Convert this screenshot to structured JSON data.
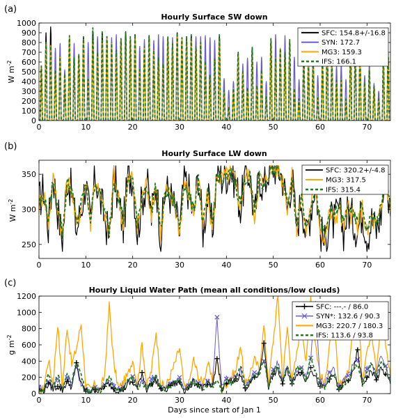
{
  "chart_data": [
    {
      "panel_label": "(a)",
      "type": "line",
      "title": "Hourly Surface SW down",
      "ylabel": "W m",
      "ylabel_sup": "-2",
      "xlabel": "",
      "xlim": [
        0,
        75
      ],
      "ylim": [
        0,
        1000
      ],
      "xticks": [
        0,
        10,
        20,
        30,
        40,
        50,
        60,
        70
      ],
      "yticks": [
        0,
        100,
        200,
        300,
        400,
        500,
        600,
        700,
        800,
        900,
        1000
      ],
      "legend": "top-right",
      "series": [
        {
          "name": "SFC: 154.8+/-16.8",
          "color": "#000000",
          "dash": "",
          "width": 1.3
        },
        {
          "name": "SYN: 172.7",
          "color": "#6a5acd",
          "dash": "",
          "width": 1.3
        },
        {
          "name": "MG3: 159.3",
          "color": "#ffa500",
          "dash": "",
          "width": 1.3
        },
        {
          "name": "IFS: 166.1",
          "color": "#1f7a1f",
          "dash": "4,3",
          "width": 1.8
        }
      ],
      "daily_peaks": {
        "days": [
          0,
          1,
          2,
          3,
          4,
          5,
          6,
          7,
          8,
          9,
          10,
          11,
          12,
          13,
          14,
          15,
          16,
          17,
          18,
          19,
          20,
          21,
          22,
          23,
          24,
          25,
          26,
          27,
          28,
          29,
          30,
          31,
          32,
          33,
          34,
          35,
          36,
          37,
          38,
          39,
          40,
          41,
          42,
          43,
          44,
          45,
          46,
          47,
          48,
          49,
          50,
          51,
          52,
          53,
          54,
          55,
          56,
          57,
          58,
          59,
          60,
          61,
          62,
          63,
          64,
          65,
          66,
          67,
          68,
          69,
          70,
          71,
          72,
          73,
          74
        ],
        "SFC": [
          560,
          900,
          960,
          520,
          650,
          330,
          870,
          590,
          680,
          860,
          350,
          920,
          680,
          910,
          860,
          790,
          680,
          840,
          910,
          860,
          880,
          500,
          750,
          870,
          720,
          630,
          560,
          860,
          790,
          900,
          850,
          860,
          880,
          760,
          800,
          590,
          450,
          620,
          880,
          270,
          100,
          310,
          700,
          480,
          300,
          750,
          330,
          500,
          200,
          840,
          620,
          740,
          690,
          830,
          300,
          160,
          700,
          590,
          600,
          190,
          620,
          850,
          560,
          380,
          390,
          160,
          790,
          780,
          690,
          360,
          520,
          340,
          170,
          640,
          690
        ],
        "SYN": [
          560,
          780,
          920,
          740,
          790,
          520,
          870,
          790,
          680,
          860,
          800,
          920,
          860,
          910,
          860,
          850,
          880,
          840,
          910,
          860,
          880,
          760,
          830,
          870,
          820,
          880,
          860,
          860,
          850,
          900,
          850,
          860,
          880,
          860,
          860,
          870,
          850,
          820,
          880,
          430,
          310,
          400,
          700,
          580,
          640,
          750,
          600,
          650,
          400,
          840,
          880,
          740,
          870,
          830,
          650,
          420,
          700,
          590,
          720,
          460,
          620,
          850,
          660,
          560,
          580,
          420,
          790,
          780,
          690,
          460,
          590,
          380,
          300,
          640,
          690
        ],
        "MG3": [
          560,
          800,
          770,
          520,
          650,
          450,
          870,
          600,
          680,
          830,
          400,
          820,
          680,
          820,
          860,
          790,
          680,
          840,
          820,
          860,
          840,
          500,
          760,
          840,
          720,
          630,
          560,
          860,
          790,
          860,
          850,
          810,
          840,
          760,
          800,
          590,
          450,
          620,
          830,
          300,
          120,
          330,
          690,
          500,
          320,
          730,
          350,
          500,
          230,
          840,
          640,
          740,
          690,
          830,
          320,
          200,
          700,
          590,
          600,
          220,
          620,
          800,
          580,
          400,
          400,
          200,
          790,
          780,
          690,
          380,
          520,
          340,
          200,
          640,
          690
        ],
        "IFS": [
          560,
          800,
          760,
          520,
          650,
          480,
          870,
          640,
          680,
          860,
          420,
          950,
          700,
          910,
          860,
          790,
          720,
          840,
          910,
          860,
          880,
          520,
          760,
          870,
          720,
          650,
          580,
          860,
          790,
          900,
          850,
          860,
          880,
          760,
          800,
          610,
          470,
          630,
          880,
          310,
          140,
          330,
          700,
          500,
          340,
          750,
          360,
          520,
          240,
          840,
          640,
          740,
          700,
          830,
          330,
          220,
          700,
          600,
          600,
          230,
          620,
          850,
          590,
          410,
          410,
          220,
          790,
          780,
          690,
          390,
          520,
          350,
          220,
          640,
          690
        ]
      }
    },
    {
      "panel_label": "(b)",
      "type": "line",
      "title": "Hourly Surface LW down",
      "ylabel": "W m",
      "ylabel_sup": "-2",
      "xlabel": "",
      "xlim": [
        0,
        75
      ],
      "ylim": [
        230,
        370
      ],
      "xticks": [
        0,
        10,
        20,
        30,
        40,
        50,
        60,
        70
      ],
      "yticks": [
        250,
        300,
        350
      ],
      "legend": "top-right",
      "series": [
        {
          "name": "SFC: 320.2+/-4.8",
          "color": "#000000",
          "dash": "",
          "width": 1.2
        },
        {
          "name": "MG3: 317.5",
          "color": "#ffa500",
          "dash": "",
          "width": 1.3
        },
        {
          "name": "IFS: 315.4",
          "color": "#1f7a1f",
          "dash": "4,3",
          "width": 1.8
        }
      ],
      "x": [
        0,
        1,
        2,
        3,
        4,
        5,
        6,
        7,
        8,
        9,
        10,
        11,
        12,
        13,
        14,
        15,
        16,
        17,
        18,
        19,
        20,
        21,
        22,
        23,
        24,
        25,
        26,
        27,
        28,
        29,
        30,
        31,
        32,
        33,
        34,
        35,
        36,
        37,
        38,
        39,
        40,
        41,
        42,
        43,
        44,
        45,
        46,
        47,
        48,
        49,
        50,
        51,
        52,
        53,
        54,
        55,
        56,
        57,
        58,
        59,
        60,
        61,
        62,
        63,
        64,
        65,
        66,
        67,
        68,
        69,
        70,
        71,
        72,
        73,
        74,
        75
      ],
      "values_by_series": {
        "SFC": [
          310,
          330,
          275,
          350,
          300,
          255,
          345,
          325,
          270,
          300,
          340,
          275,
          350,
          315,
          290,
          258,
          350,
          310,
          275,
          345,
          350,
          265,
          315,
          340,
          290,
          340,
          260,
          330,
          320,
          300,
          265,
          345,
          325,
          290,
          350,
          270,
          318,
          270,
          355,
          345,
          350,
          355,
          340,
          300,
          350,
          350,
          285,
          350,
          330,
          358,
          362,
          360,
          345,
          300,
          350,
          270,
          320,
          260,
          300,
          340,
          270,
          250,
          290,
          280,
          300,
          270,
          300,
          285,
          270,
          300,
          260,
          285,
          270,
          295,
          350,
          290
        ],
        "MG3": [
          305,
          325,
          280,
          345,
          305,
          260,
          340,
          330,
          275,
          305,
          338,
          282,
          345,
          318,
          295,
          262,
          348,
          315,
          280,
          340,
          348,
          270,
          318,
          338,
          295,
          338,
          265,
          328,
          318,
          305,
          268,
          340,
          322,
          295,
          348,
          272,
          320,
          272,
          352,
          342,
          348,
          352,
          338,
          305,
          348,
          348,
          290,
          348,
          332,
          355,
          360,
          358,
          342,
          305,
          345,
          275,
          318,
          268,
          305,
          338,
          275,
          255,
          295,
          285,
          302,
          275,
          302,
          288,
          275,
          302,
          265,
          288,
          275,
          298,
          348,
          295
        ],
        "IFS": [
          308,
          320,
          285,
          342,
          308,
          265,
          338,
          328,
          280,
          308,
          335,
          285,
          342,
          320,
          298,
          268,
          345,
          318,
          285,
          338,
          345,
          275,
          320,
          335,
          298,
          335,
          270,
          325,
          320,
          308,
          272,
          338,
          320,
          298,
          345,
          278,
          322,
          278,
          350,
          340,
          345,
          350,
          335,
          308,
          345,
          345,
          295,
          345,
          330,
          352,
          358,
          355,
          340,
          308,
          342,
          280,
          320,
          272,
          308,
          335,
          280,
          262,
          298,
          290,
          305,
          280,
          305,
          292,
          280,
          305,
          270,
          292,
          280,
          300,
          345,
          300
        ]
      }
    },
    {
      "panel_label": "(c)",
      "type": "line",
      "title": "Hourly Liquid Water Path (mean all conditions/low clouds)",
      "ylabel": "g m",
      "ylabel_sup": "-2",
      "xlabel": "Days since start of Jan 1",
      "xlim": [
        0,
        75
      ],
      "ylim": [
        0,
        1200
      ],
      "xticks": [
        0,
        10,
        20,
        30,
        40,
        50,
        60,
        70
      ],
      "yticks": [
        0,
        200,
        400,
        600,
        800,
        1000,
        1200
      ],
      "legend": "top-right",
      "series": [
        {
          "name": "SFC: ---.- / 86.0",
          "color": "#000000",
          "dash": "",
          "width": 1.0,
          "marker": "+"
        },
        {
          "name": "SYN*: 132.6 / 90.3",
          "color": "#6a5acd",
          "dash": "",
          "width": 1.0,
          "marker": "x"
        },
        {
          "name": "MG3: 220.7 / 180.3",
          "color": "#ffa500",
          "dash": "",
          "width": 1.3
        },
        {
          "name": "IFS: 113.6 / 93.8",
          "color": "#1f7a1f",
          "dash": "4,3",
          "width": 1.8
        }
      ],
      "x": [
        0,
        1,
        2,
        3,
        4,
        5,
        6,
        7,
        8,
        9,
        10,
        11,
        12,
        13,
        14,
        15,
        16,
        17,
        18,
        19,
        20,
        21,
        22,
        23,
        24,
        25,
        26,
        27,
        28,
        29,
        30,
        31,
        32,
        33,
        34,
        35,
        36,
        37,
        38,
        39,
        40,
        41,
        42,
        43,
        44,
        45,
        46,
        47,
        48,
        49,
        50,
        51,
        52,
        53,
        54,
        55,
        56,
        57,
        58,
        59,
        60,
        61,
        62,
        63,
        64,
        65,
        66,
        67,
        68,
        69,
        70,
        71,
        72,
        73,
        74,
        75
      ],
      "values_by_series": {
        "MG3": [
          20,
          60,
          420,
          120,
          870,
          60,
          830,
          350,
          560,
          860,
          100,
          40,
          120,
          30,
          220,
          1090,
          350,
          60,
          140,
          230,
          430,
          100,
          620,
          90,
          280,
          770,
          120,
          80,
          220,
          370,
          560,
          60,
          120,
          420,
          210,
          120,
          380,
          150,
          410,
          40,
          120,
          210,
          270,
          610,
          90,
          260,
          420,
          300,
          830,
          120,
          660,
          1200,
          180,
          820,
          150,
          480,
          930,
          350,
          1200,
          620,
          220,
          120,
          630,
          880,
          60,
          180,
          250,
          750,
          1120,
          170,
          580,
          720,
          270,
          920,
          620,
          200
        ],
        "IFS": [
          30,
          40,
          250,
          80,
          240,
          50,
          220,
          150,
          400,
          230,
          40,
          30,
          60,
          30,
          120,
          200,
          90,
          40,
          60,
          160,
          200,
          70,
          120,
          60,
          140,
          220,
          60,
          50,
          90,
          130,
          180,
          40,
          80,
          160,
          110,
          60,
          120,
          80,
          150,
          30,
          160,
          120,
          190,
          360,
          70,
          140,
          230,
          250,
          420,
          90,
          280,
          330,
          140,
          340,
          120,
          320,
          300,
          180,
          420,
          270,
          100,
          80,
          200,
          250,
          50,
          120,
          160,
          310,
          350,
          120,
          260,
          380,
          200,
          410,
          300,
          120
        ],
        "SYN": [
          80,
          60,
          150,
          90,
          180,
          60,
          200,
          120,
          320,
          120,
          50,
          40,
          80,
          40,
          110,
          160,
          90,
          60,
          80,
          150,
          210,
          90,
          160,
          70,
          180,
          220,
          80,
          60,
          120,
          140,
          200,
          60,
          100,
          180,
          130,
          80,
          150,
          100,
          940,
          70,
          180,
          160,
          200,
          300,
          90,
          160,
          260,
          280,
          400,
          120,
          300,
          380,
          180,
          380,
          140,
          300,
          320,
          200,
          440,
          1130,
          160,
          120,
          260,
          300,
          80,
          160,
          220,
          340,
          420,
          160,
          300,
          360,
          240,
          460,
          340,
          180
        ],
        "SFC": [
          40,
          30,
          120,
          60,
          90,
          40,
          150,
          80,
          380,
          110,
          30,
          30,
          50,
          30,
          90,
          120,
          60,
          40,
          50,
          120,
          140,
          60,
          260,
          50,
          120,
          160,
          60,
          40,
          100,
          120,
          140,
          40,
          80,
          140,
          110,
          60,
          110,
          80,
          430,
          40,
          120,
          150,
          180,
          220,
          70,
          120,
          200,
          240,
          620,
          90,
          240,
          290,
          120,
          300,
          120,
          260,
          260,
          150,
          320,
          200,
          90,
          80,
          180,
          220,
          50,
          120,
          160,
          240,
          540,
          110,
          200,
          280,
          170,
          300,
          240,
          120
        ]
      }
    }
  ]
}
